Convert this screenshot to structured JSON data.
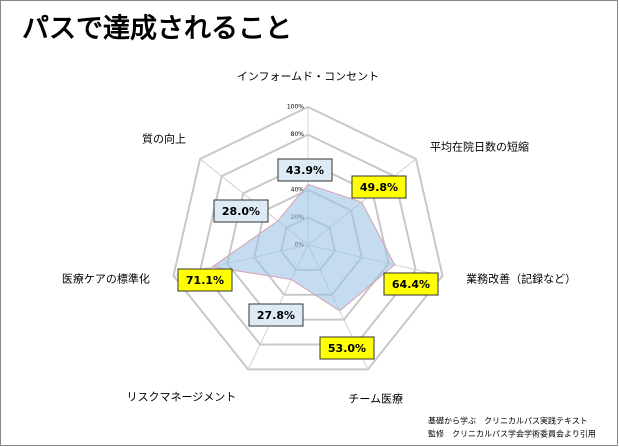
{
  "chart_data": {
    "type": "radar",
    "title": "パスで達成されること",
    "categories": [
      "インフォームド・コンセント",
      "平均在院日数の短縮",
      "業務改善（記録など）",
      "チーム医療",
      "リスクマネージメント",
      "医療ケアの標準化",
      "質の向上"
    ],
    "values": [
      43.9,
      49.8,
      64.4,
      53.0,
      27.8,
      71.1,
      28.0
    ],
    "value_labels": [
      "43.9%",
      "49.8%",
      "64.4%",
      "53.0%",
      "27.8%",
      "71.1%",
      "28.0%"
    ],
    "color": "#9dc3e6",
    "ylim": [
      0,
      100
    ],
    "yticks": [
      {
        "value": 0,
        "label": "0%"
      },
      {
        "value": 20,
        "label": "20%"
      },
      {
        "value": 40,
        "label": "40%"
      },
      {
        "value": 60,
        "label": "60%"
      },
      {
        "value": 80,
        "label": "80%"
      },
      {
        "value": 100,
        "label": "100%"
      }
    ],
    "grid": true,
    "source": [
      "基礎から学ぶ　クリニカルパス実践テキスト",
      "監修　クリニカルパス学会学術委員会より引用"
    ]
  }
}
